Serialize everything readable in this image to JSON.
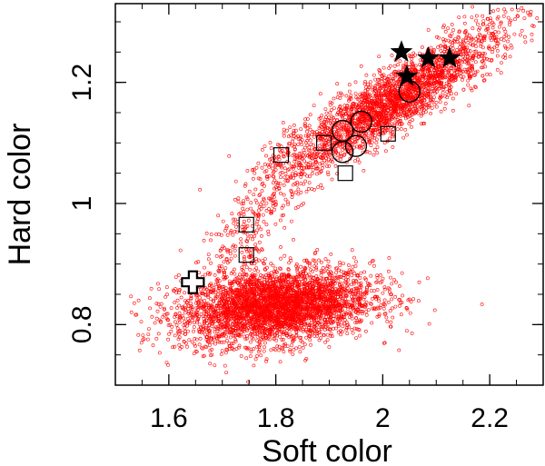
{
  "chart_data": {
    "type": "scatter",
    "title": "",
    "xlabel": "Soft color",
    "ylabel": "Hard color",
    "xlim": [
      1.5,
      2.3
    ],
    "ylim": [
      0.7,
      1.33
    ],
    "xticks": [
      1.6,
      1.8,
      2.0,
      2.2
    ],
    "xtick_labels": [
      "1.6",
      "1.8",
      "2",
      "2.2"
    ],
    "yticks": [
      0.8,
      1.0,
      1.2
    ],
    "ytick_labels": [
      "0.8",
      "1",
      "1.2"
    ],
    "grid": false,
    "legend": "none",
    "background_points": {
      "color": "#ff0000",
      "marker": "small-open-circle",
      "approx_count": 6000,
      "clusters": [
        {
          "region": "lower branch",
          "x_center": 1.8,
          "y_center": 0.83,
          "x_spread": 0.09,
          "y_spread": 0.03
        },
        {
          "region": "upper branch",
          "x_center": 2.02,
          "y_center": 1.17,
          "x_spread": 0.1,
          "y_spread": 0.06
        }
      ]
    },
    "series": [
      {
        "marker": "star-filled",
        "color": "#000000",
        "points": [
          [
            2.035,
            1.25
          ],
          [
            2.085,
            1.24
          ],
          [
            2.125,
            1.24
          ],
          [
            2.045,
            1.21
          ]
        ]
      },
      {
        "marker": "open-circle",
        "color": "#000000",
        "points": [
          [
            2.05,
            1.185
          ],
          [
            1.96,
            1.135
          ],
          [
            1.925,
            1.12
          ],
          [
            1.95,
            1.095
          ],
          [
            1.925,
            1.085
          ]
        ]
      },
      {
        "marker": "open-square",
        "color": "#000000",
        "points": [
          [
            2.01,
            1.115
          ],
          [
            1.89,
            1.1
          ],
          [
            1.81,
            1.08
          ],
          [
            1.93,
            1.05
          ],
          [
            1.745,
            0.965
          ],
          [
            1.745,
            0.915
          ]
        ]
      },
      {
        "marker": "open-cross",
        "color": "#000000",
        "points": [
          [
            1.645,
            0.87
          ]
        ]
      }
    ]
  }
}
